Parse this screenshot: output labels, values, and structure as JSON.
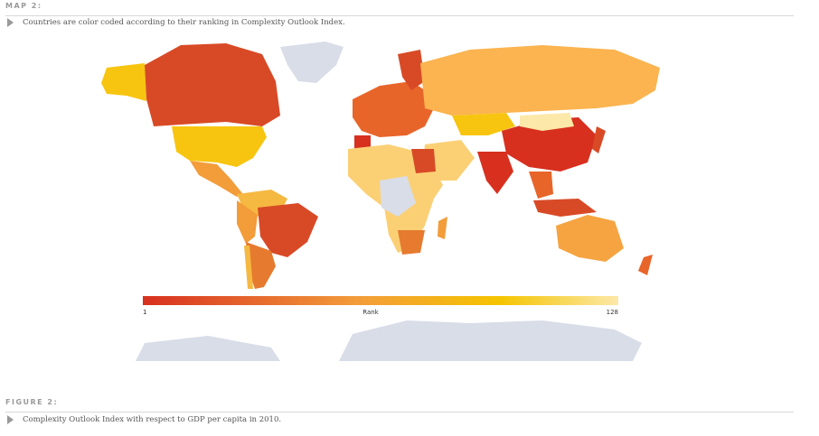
{
  "map": {
    "label": "MAP 2:",
    "caption": "Countries are color coded according to their ranking in Complexity Outlook Index.",
    "legend": {
      "title": "Rank",
      "min": "1",
      "max": "128"
    }
  },
  "figure": {
    "label": "FIGURE 2:",
    "caption": "Complexity Outlook Index with respect to GDP per capita in 2010."
  }
}
